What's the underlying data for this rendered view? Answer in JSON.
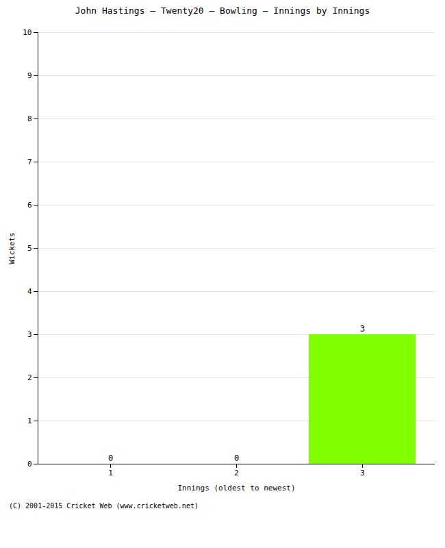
{
  "chart_data": {
    "type": "bar",
    "title": "John Hastings – Twenty20 – Bowling – Innings by Innings",
    "xlabel": "Innings (oldest to newest)",
    "ylabel": "Wickets",
    "categories": [
      "1",
      "2",
      "3"
    ],
    "values": [
      0,
      0,
      3
    ],
    "color": "#7fff00",
    "ylim": [
      0,
      10
    ],
    "yticks": [
      0,
      1,
      2,
      3,
      4,
      5,
      6,
      7,
      8,
      9,
      10
    ],
    "grid": true,
    "data_labels": true,
    "annotations": [
      "(C) 2001-2015 Cricket Web (www.cricketweb.net)"
    ]
  }
}
